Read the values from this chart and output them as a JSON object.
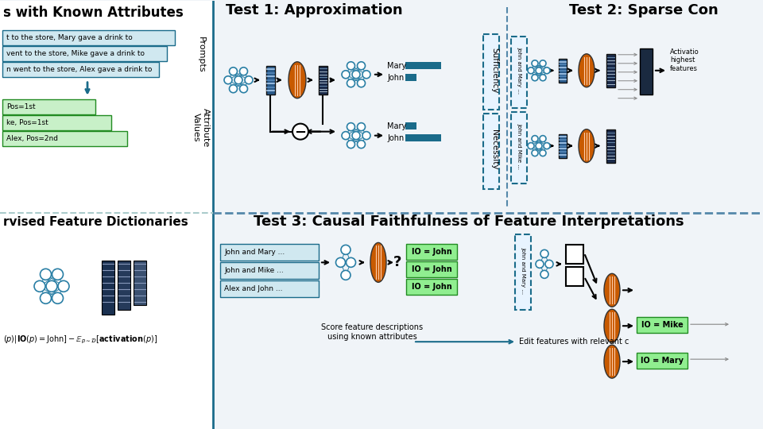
{
  "bg_color": "#f0f4f8",
  "left_bg": "#ffffff",
  "left_section_title": "s with Known Attributes",
  "left_section2_title": "rvised Feature Dictionaries",
  "test1_title": "Test 1: Approximation",
  "test2_title": "Test 2: Sparse Con",
  "test3_title": "Test 3: Causal Faithfulness of Feature Interpretations",
  "prompts_label": "Prompts",
  "attr_values_label": "Attribute\nValues",
  "necessity_label": "Necessity",
  "sufficiency_label": "Sufficiency",
  "prompt_texts": [
    "t to the store, Mary gave a drink to",
    "vent to the store, Mike gave a drink to",
    "n went to the store, Alex gave a drink to"
  ],
  "attr_texts": [
    "Pos=1st",
    "ke, Pos=1st",
    "Alex, Pos=2nd"
  ],
  "test3_prompts": [
    "John and Mary ...",
    "John and Mike ...",
    "Alex and John ..."
  ],
  "test3_labels": [
    "IO = John",
    "IO = John",
    "IO = John"
  ],
  "test3_score_text": "Score feature descriptions\nusing known attributes",
  "test3_edit_text": "Edit features with relevant c",
  "io_mike": "IO = Mike",
  "io_mary": "IO = Mary",
  "blue_dark": "#1a6b8a",
  "blue_mid": "#2a7fa5",
  "green_light": "#90ee90",
  "green_dark": "#228B22",
  "orange_dark": "#c85a00",
  "node_color": "#2a7fa5",
  "embed_color": "#2a5a8a",
  "sae_color": "#2a3a5a",
  "prompt_face": "#d0e8f0",
  "attr_face": "#c8f0c8"
}
